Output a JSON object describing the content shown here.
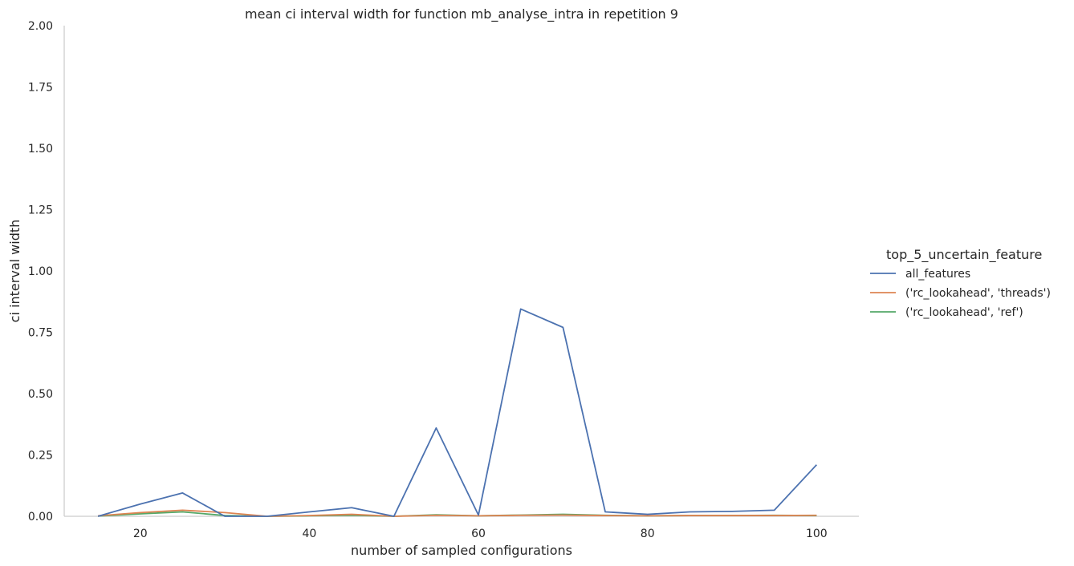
{
  "chart_data": {
    "type": "line",
    "title": "mean ci interval width for function mb_analyse_intra in repetition 9",
    "xlabel": "number of sampled configurations",
    "ylabel": "ci interval width",
    "xlim": [
      11,
      105
    ],
    "ylim": [
      0,
      2
    ],
    "x_ticks": [
      20,
      40,
      60,
      80,
      100
    ],
    "y_ticks": [
      "0.00",
      "0.25",
      "0.50",
      "0.75",
      "1.00",
      "1.25",
      "1.50",
      "1.75",
      "2.00"
    ],
    "grid": false,
    "legend": {
      "title": "top_5_uncertain_feature",
      "placement": "right"
    },
    "series": [
      {
        "name": "all_features",
        "color": "#4c72b0",
        "x": [
          15,
          20,
          25,
          30,
          35,
          40,
          45,
          50,
          55,
          60,
          65,
          70,
          75,
          80,
          85,
          90,
          95,
          100
        ],
        "values": [
          0.0,
          0.05,
          0.095,
          0.0,
          0.0,
          0.018,
          0.035,
          0.0,
          0.36,
          0.005,
          0.845,
          0.77,
          0.018,
          0.008,
          0.018,
          0.02,
          0.025,
          0.21
        ]
      },
      {
        "name": "('rc_lookahead', 'threads')",
        "color": "#dd8452",
        "x": [
          15,
          20,
          25,
          30,
          35,
          40,
          45,
          50,
          55,
          60,
          65,
          70,
          75,
          80,
          85,
          90,
          95,
          100
        ],
        "values": [
          0.002,
          0.015,
          0.025,
          0.015,
          0.0,
          0.003,
          0.008,
          0.0,
          0.004,
          0.002,
          0.004,
          0.005,
          0.003,
          0.002,
          0.003,
          0.003,
          0.003,
          0.004
        ]
      },
      {
        "name": "('rc_lookahead', 'ref')",
        "color": "#55a868",
        "x": [
          15,
          20,
          25,
          30,
          35,
          40,
          45,
          50,
          55,
          60,
          65,
          70,
          75,
          80,
          85,
          90,
          95,
          100
        ],
        "values": [
          0.001,
          0.01,
          0.018,
          0.003,
          0.0,
          0.002,
          0.004,
          0.0,
          0.006,
          0.002,
          0.005,
          0.008,
          0.004,
          0.002,
          0.003,
          0.003,
          0.004,
          0.003
        ]
      }
    ]
  }
}
